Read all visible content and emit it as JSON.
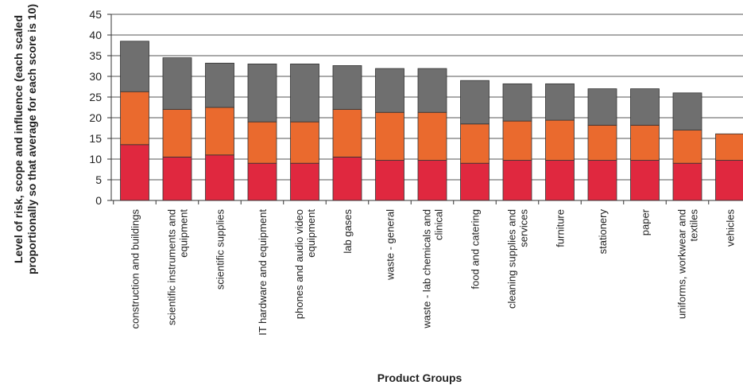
{
  "chart_data": {
    "type": "bar",
    "stacked": true,
    "title": "",
    "xlabel": "Product Groups",
    "ylabel": [
      "Level of risk, scope and influence (each scaled",
      "proportionally so that average for each score is 10)"
    ],
    "ylim": [
      0,
      45
    ],
    "yticks": [
      0,
      5,
      10,
      15,
      20,
      25,
      30,
      35,
      40,
      45
    ],
    "grid": true,
    "legend": "none",
    "categories": [
      [
        "construction and buildings"
      ],
      [
        "scientific instruments and",
        "equipment"
      ],
      [
        "scientific supplies"
      ],
      [
        "IT hardware and equipment"
      ],
      [
        "phones and audio video",
        "equipment"
      ],
      [
        "lab gases"
      ],
      [
        "waste - general"
      ],
      [
        "waste - lab chemicals and",
        "clinical"
      ],
      [
        "food and catering"
      ],
      [
        "cleaning supplies and",
        "services"
      ],
      [
        "furniture"
      ],
      [
        "stationery"
      ],
      [
        "paper"
      ],
      [
        "uniforms, workwear and",
        "textiles"
      ],
      [
        "vehicles"
      ]
    ],
    "series": [
      {
        "color": "#e0283f",
        "values": [
          13.5,
          10.5,
          11,
          9,
          9,
          10.5,
          9.7,
          9.7,
          9,
          9.7,
          9.7,
          9.7,
          9.7,
          9,
          9.7
        ]
      },
      {
        "color": "#ea6a2e",
        "values": [
          12.8,
          11.5,
          11.5,
          10,
          10,
          11.5,
          11.6,
          11.6,
          9.5,
          9.5,
          9.7,
          8.5,
          8.5,
          8,
          6.4
        ]
      },
      {
        "color": "#6f6f6f",
        "values": [
          12.2,
          12.5,
          10.7,
          14,
          14,
          10.6,
          10.6,
          10.6,
          10.5,
          9,
          8.8,
          8.8,
          8.8,
          9,
          0
        ]
      }
    ]
  }
}
